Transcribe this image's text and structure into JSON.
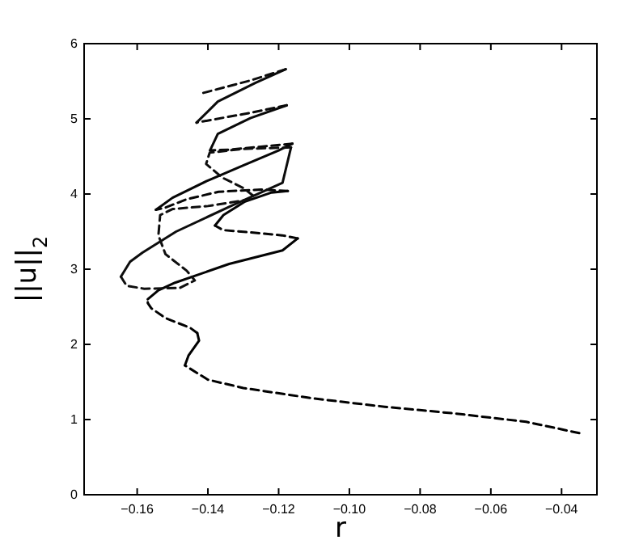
{
  "chart_data": {
    "type": "line",
    "xlabel": "r",
    "ylabel": "||u||$_{2}$",
    "xlim": [
      -0.175,
      -0.03
    ],
    "ylim": [
      0,
      6
    ],
    "xticks": [
      {
        "value": -0.16,
        "label": "−0.16"
      },
      {
        "value": -0.14,
        "label": "−0.14"
      },
      {
        "value": -0.12,
        "label": "−0.12"
      },
      {
        "value": -0.1,
        "label": "−0.10"
      },
      {
        "value": -0.08,
        "label": "−0.08"
      },
      {
        "value": -0.06,
        "label": "−0.06"
      },
      {
        "value": -0.04,
        "label": "−0.04"
      }
    ],
    "yticks": [
      0,
      1,
      2,
      3,
      4,
      5,
      6
    ],
    "grid": false,
    "series": [
      {
        "color": "#000000",
        "line_style": "dashed",
        "x": [
          -0.035,
          -0.05,
          -0.07,
          -0.09,
          -0.11,
          -0.13,
          -0.14,
          -0.1465
        ],
        "values": [
          0.82,
          0.97,
          1.08,
          1.17,
          1.28,
          1.42,
          1.53,
          1.72
        ]
      },
      {
        "color": "#010101",
        "line_style": "solid",
        "x": [
          -0.1465,
          -0.1455,
          -0.144,
          -0.1425,
          -0.143
        ],
        "values": [
          1.72,
          1.85,
          1.95,
          2.05,
          2.15
        ]
      },
      {
        "color": "#020202",
        "line_style": "dashed",
        "x": [
          -0.143,
          -0.145,
          -0.152,
          -0.156,
          -0.157,
          -0.157
        ],
        "values": [
          2.15,
          2.22,
          2.35,
          2.48,
          2.55,
          2.6
        ]
      },
      {
        "color": "#030303",
        "line_style": "solid",
        "x": [
          -0.157,
          -0.154,
          -0.1493,
          -0.134,
          -0.1189,
          -0.1146
        ],
        "values": [
          2.6,
          2.72,
          2.82,
          3.07,
          3.25,
          3.41
        ]
      },
      {
        "color": "#040404",
        "line_style": "dashed",
        "x": [
          -0.1146,
          -0.119,
          -0.128,
          -0.1357,
          -0.138
        ],
        "values": [
          3.41,
          3.45,
          3.49,
          3.52,
          3.58
        ]
      },
      {
        "color": "#050505",
        "line_style": "solid",
        "x": [
          -0.138,
          -0.1356,
          -0.1295,
          -0.122,
          -0.1174
        ],
        "values": [
          3.58,
          3.72,
          3.9,
          4.02,
          4.04
        ]
      },
      {
        "color": "#060606",
        "line_style": "dashed",
        "x": [
          -0.1174,
          -0.125,
          -0.137,
          -0.146,
          -0.152,
          -0.1547
        ],
        "values": [
          4.04,
          4.06,
          4.03,
          3.93,
          3.82,
          3.79
        ]
      },
      {
        "color": "#070707",
        "line_style": "solid",
        "x": [
          -0.1547,
          -0.15,
          -0.14,
          -0.13,
          -0.12,
          -0.1161
        ],
        "values": [
          3.79,
          3.95,
          4.18,
          4.38,
          4.58,
          4.67
        ]
      },
      {
        "color": "#080808",
        "line_style": "dashed",
        "x": [
          -0.1161,
          -0.125,
          -0.134,
          -0.1394
        ],
        "values": [
          4.67,
          4.63,
          4.59,
          4.58
        ]
      },
      {
        "color": "#090909",
        "line_style": "solid",
        "x": [
          -0.1394,
          -0.1372,
          -0.128,
          -0.1177
        ],
        "values": [
          4.58,
          4.8,
          5.01,
          5.18
        ]
      },
      {
        "color": "#0a0a0a",
        "line_style": "dashed",
        "x": [
          -0.1177,
          -0.128,
          -0.1432
        ],
        "values": [
          5.18,
          5.08,
          4.95
        ]
      },
      {
        "color": "#0b0b0b",
        "line_style": "solid",
        "x": [
          -0.1432,
          -0.1372,
          -0.1265,
          -0.118
        ],
        "values": [
          4.95,
          5.23,
          5.48,
          5.66
        ]
      },
      {
        "color": "#0c0c0c",
        "line_style": "dashed",
        "x": [
          -0.118,
          -0.128,
          -0.1425
        ],
        "values": [
          5.66,
          5.51,
          5.33
        ]
      },
      {
        "color": "#0d0d0d",
        "line_style": "solid",
        "x": [
          -0.1646,
          -0.162,
          -0.1585,
          -0.149,
          -0.134,
          -0.1189,
          -0.1165
        ],
        "values": [
          2.9,
          3.1,
          3.22,
          3.5,
          3.83,
          4.15,
          4.62
        ]
      },
      {
        "color": "#0e0e0e",
        "line_style": "dashed",
        "x": [
          -0.1165,
          -0.13,
          -0.1395,
          -0.1405,
          -0.136,
          -0.13,
          -0.127
        ],
        "values": [
          4.62,
          4.6,
          4.55,
          4.4,
          4.22,
          4.08,
          3.97
        ]
      },
      {
        "color": "#0f0f0f",
        "line_style": "dashed",
        "x": [
          -0.1646,
          -0.163,
          -0.158,
          -0.148,
          -0.1437,
          -0.146,
          -0.152,
          -0.154,
          -0.1535,
          -0.15,
          -0.14,
          -0.128
        ],
        "values": [
          2.9,
          2.78,
          2.74,
          2.75,
          2.85,
          2.98,
          3.2,
          3.45,
          3.72,
          3.8,
          3.84,
          3.93
        ]
      }
    ]
  }
}
